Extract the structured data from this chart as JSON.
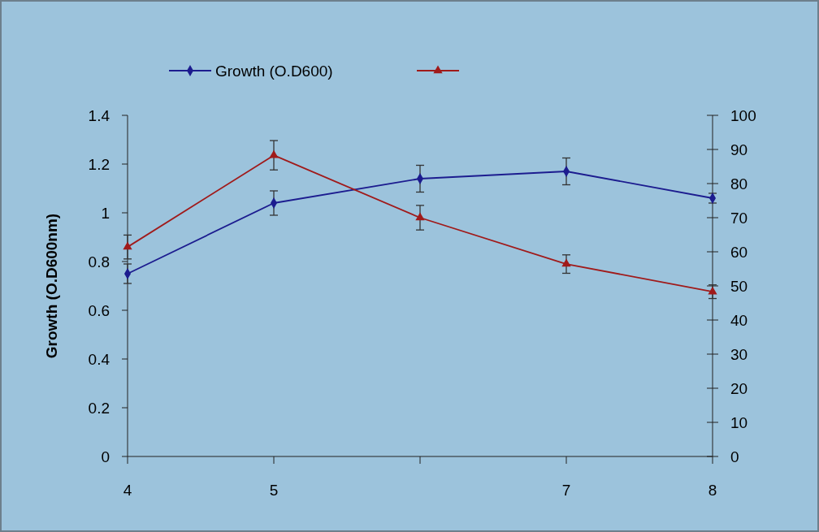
{
  "chart_data": {
    "type": "line",
    "categories": [
      "4",
      "5",
      null,
      "7",
      "8"
    ],
    "ylabel": "Growth (O.D600nm)",
    "ylim": [
      0,
      1.4
    ],
    "yticks": [
      0,
      0.2,
      0.4,
      0.6,
      0.8,
      1,
      1.2,
      1.4
    ],
    "y2lim": [
      0,
      100
    ],
    "y2ticks": [
      0,
      10,
      20,
      30,
      40,
      50,
      60,
      70,
      80,
      90,
      100
    ],
    "legend": "top",
    "grid": false,
    "series": [
      {
        "name": "Growth (O.D600)",
        "color": "#1c1c8f",
        "marker": "diamond",
        "values": [
          0.75,
          1.04,
          1.14,
          1.17,
          1.06
        ],
        "errors": [
          0.04,
          0.05,
          0.055,
          0.055,
          0.02
        ]
      },
      {
        "color": "#a01a1a",
        "marker": "triangle",
        "axis": "y2",
        "values": [
          61.4,
          88.3,
          70,
          56.4,
          48.3
        ],
        "errors": [
          3.5,
          4.3,
          3.6,
          2.7,
          2
        ]
      }
    ]
  }
}
